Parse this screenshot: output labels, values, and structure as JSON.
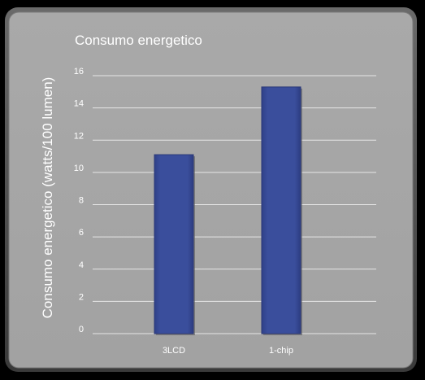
{
  "colors": {
    "page_background": "#000000",
    "panel_fill": "#a6a6a6",
    "panel_border": "#555555",
    "bar_fill": "#374a96",
    "gridline": "#e6e6e6",
    "text": "#ffffff"
  },
  "chart_data": {
    "type": "bar",
    "title": "Consumo energetico",
    "xlabel": "",
    "ylabel": "Consumo energetico (watts/100 lumen)",
    "categories": [
      "3LCD",
      "1-chip"
    ],
    "values": [
      11.1,
      15.3
    ],
    "ylim": [
      0,
      16
    ],
    "yticks": [
      "0",
      "2",
      "4",
      "6",
      "8",
      "10",
      "12",
      "14",
      "16"
    ],
    "grid": true,
    "legend": "none"
  }
}
